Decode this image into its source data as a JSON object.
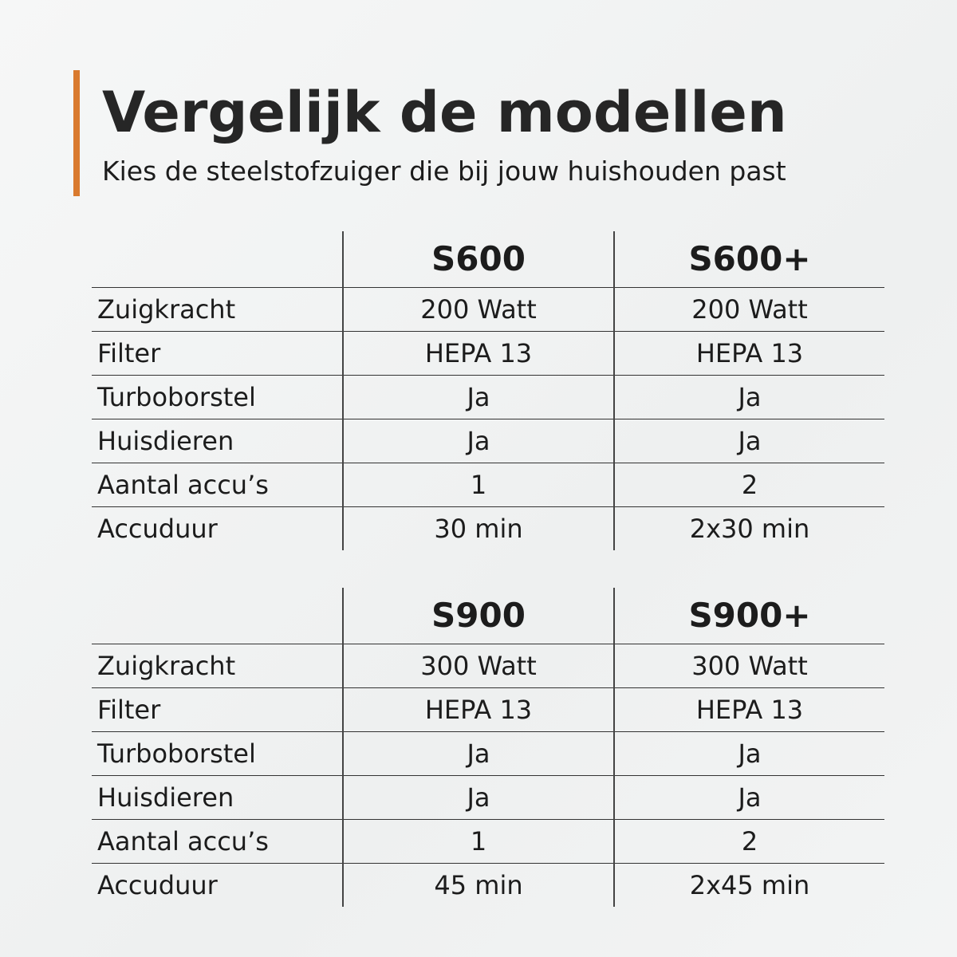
{
  "accent_color": "#d97a2e",
  "title": "Vergelijk de modellen",
  "subtitle": "Kies de steelstofzuiger die bij jouw huishouden past",
  "tables": [
    {
      "models": [
        "S600",
        "S600+"
      ],
      "rows": [
        {
          "label": "Zuigkracht",
          "values": [
            "200 Watt",
            "200 Watt"
          ]
        },
        {
          "label": "Filter",
          "values": [
            "HEPA 13",
            "HEPA 13"
          ]
        },
        {
          "label": "Turboborstel",
          "values": [
            "Ja",
            "Ja"
          ]
        },
        {
          "label": "Huisdieren",
          "values": [
            "Ja",
            "Ja"
          ]
        },
        {
          "label": "Aantal accu’s",
          "values": [
            "1",
            "2"
          ]
        },
        {
          "label": "Accuduur",
          "values": [
            "30 min",
            "2x30 min"
          ]
        }
      ]
    },
    {
      "models": [
        "S900",
        "S900+"
      ],
      "rows": [
        {
          "label": "Zuigkracht",
          "values": [
            "300 Watt",
            "300 Watt"
          ]
        },
        {
          "label": "Filter",
          "values": [
            "HEPA 13",
            "HEPA 13"
          ]
        },
        {
          "label": "Turboborstel",
          "values": [
            "Ja",
            "Ja"
          ]
        },
        {
          "label": "Huisdieren",
          "values": [
            "Ja",
            "Ja"
          ]
        },
        {
          "label": "Aantal accu’s",
          "values": [
            "1",
            "2"
          ]
        },
        {
          "label": "Accuduur",
          "values": [
            "45 min",
            "2x45 min"
          ]
        }
      ]
    }
  ]
}
